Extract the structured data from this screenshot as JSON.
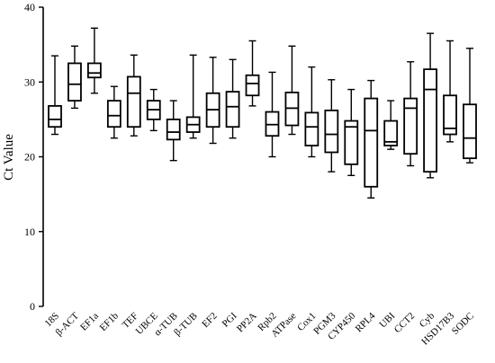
{
  "chart_data": {
    "type": "boxplot",
    "title": "",
    "xlabel": "",
    "ylabel": "Ct Value",
    "ylim": [
      0,
      40
    ],
    "yticks": [
      "0",
      "10",
      "20",
      "30",
      "40"
    ],
    "grid": false,
    "legend": "none",
    "categories": [
      "18S",
      "β-ACT",
      "EF1a",
      "EF1b",
      "TEF",
      "UBCE",
      "α-TUB",
      "β-TUB",
      "EF2",
      "PGI",
      "PP2A",
      "Rpb2",
      "ATPase",
      "Cox1",
      "PGM3",
      "CYP450",
      "RPL4",
      "UBI",
      "CCT2",
      "Cyb",
      "HSD17B3",
      "SODC"
    ],
    "series": [
      {
        "boxes": [
          {
            "min": 23.0,
            "q1": 24.0,
            "median": 25.0,
            "q3": 26.8,
            "max": 33.5
          },
          {
            "min": 26.5,
            "q1": 27.5,
            "median": 29.7,
            "q3": 32.5,
            "max": 34.8
          },
          {
            "min": 28.5,
            "q1": 30.6,
            "median": 31.2,
            "q3": 32.5,
            "max": 37.2
          },
          {
            "min": 22.5,
            "q1": 24.0,
            "median": 25.5,
            "q3": 27.5,
            "max": 29.4
          },
          {
            "min": 22.8,
            "q1": 24.0,
            "median": 28.5,
            "q3": 30.7,
            "max": 33.6
          },
          {
            "min": 23.5,
            "q1": 25.0,
            "median": 26.3,
            "q3": 27.5,
            "max": 29.0
          },
          {
            "min": 19.5,
            "q1": 22.3,
            "median": 23.3,
            "q3": 25.0,
            "max": 27.5
          },
          {
            "min": 22.5,
            "q1": 23.3,
            "median": 24.3,
            "q3": 25.3,
            "max": 33.6
          },
          {
            "min": 21.8,
            "q1": 24.0,
            "median": 26.3,
            "q3": 28.5,
            "max": 33.3
          },
          {
            "min": 22.5,
            "q1": 24.0,
            "median": 26.7,
            "q3": 28.7,
            "max": 33.0
          },
          {
            "min": 26.8,
            "q1": 28.2,
            "median": 29.8,
            "q3": 30.9,
            "max": 35.5
          },
          {
            "min": 20.0,
            "q1": 22.8,
            "median": 24.3,
            "q3": 26.0,
            "max": 31.3
          },
          {
            "min": 23.0,
            "q1": 24.2,
            "median": 26.5,
            "q3": 28.6,
            "max": 34.8
          },
          {
            "min": 20.0,
            "q1": 21.5,
            "median": 24.0,
            "q3": 25.9,
            "max": 32.0
          },
          {
            "min": 18.0,
            "q1": 20.6,
            "median": 23.0,
            "q3": 26.2,
            "max": 30.3
          },
          {
            "min": 17.5,
            "q1": 19.0,
            "median": 24.0,
            "q3": 24.8,
            "max": 29.0
          },
          {
            "min": 14.5,
            "q1": 16.0,
            "median": 23.5,
            "q3": 27.8,
            "max": 30.2
          },
          {
            "min": 21.0,
            "q1": 21.5,
            "median": 22.0,
            "q3": 24.8,
            "max": 27.5
          },
          {
            "min": 18.8,
            "q1": 20.4,
            "median": 26.5,
            "q3": 27.8,
            "max": 32.7
          },
          {
            "min": 17.2,
            "q1": 18.0,
            "median": 29.0,
            "q3": 31.7,
            "max": 36.5
          },
          {
            "min": 22.0,
            "q1": 23.0,
            "median": 23.8,
            "q3": 28.2,
            "max": 35.5
          },
          {
            "min": 19.2,
            "q1": 19.8,
            "median": 22.5,
            "q3": 27.0,
            "max": 34.5
          }
        ]
      }
    ]
  }
}
